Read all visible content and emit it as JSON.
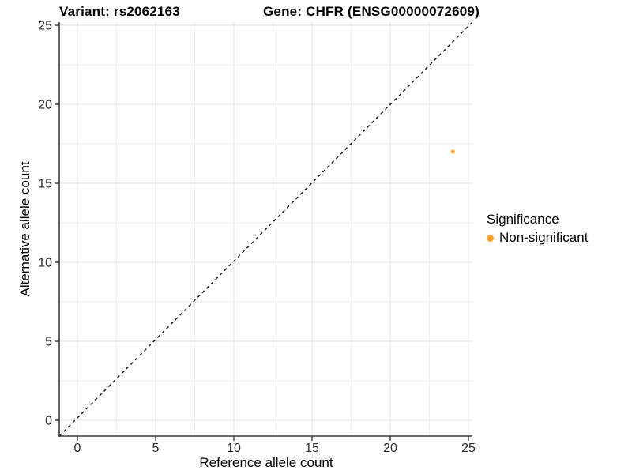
{
  "chart_data": {
    "type": "scatter",
    "titles": {
      "left": "Variant: rs2062163",
      "right": "Gene: CHFR (ENSG00000072609)"
    },
    "xlabel": "Reference allele count",
    "ylabel": "Alternative allele count",
    "xlim": [
      0,
      25
    ],
    "ylim": [
      0,
      25
    ],
    "xticks": [
      0,
      5,
      10,
      15,
      20,
      25
    ],
    "yticks": [
      0,
      5,
      10,
      15,
      20,
      25
    ],
    "minor_step": 2.5,
    "grid": true,
    "points": [
      {
        "x": 24,
        "y": 17,
        "series": "Non-significant",
        "color": "#F9A12E",
        "radius": 2.5
      }
    ],
    "abline": {
      "slope": 1,
      "intercept": 0,
      "dash": "4 4",
      "color": "#000000"
    },
    "legend": {
      "title": "Significance",
      "position": "right",
      "entries": [
        {
          "label": "Non-significant",
          "color": "#F9A12E"
        }
      ]
    },
    "colors": {
      "background": "#FFFFFF",
      "grid_major": "#E3E3E3",
      "grid_minor": "#EFEFEF",
      "axis_line": "#3C3C3C",
      "tick_text": "#2B2B2B",
      "title_text": "#000000"
    }
  }
}
